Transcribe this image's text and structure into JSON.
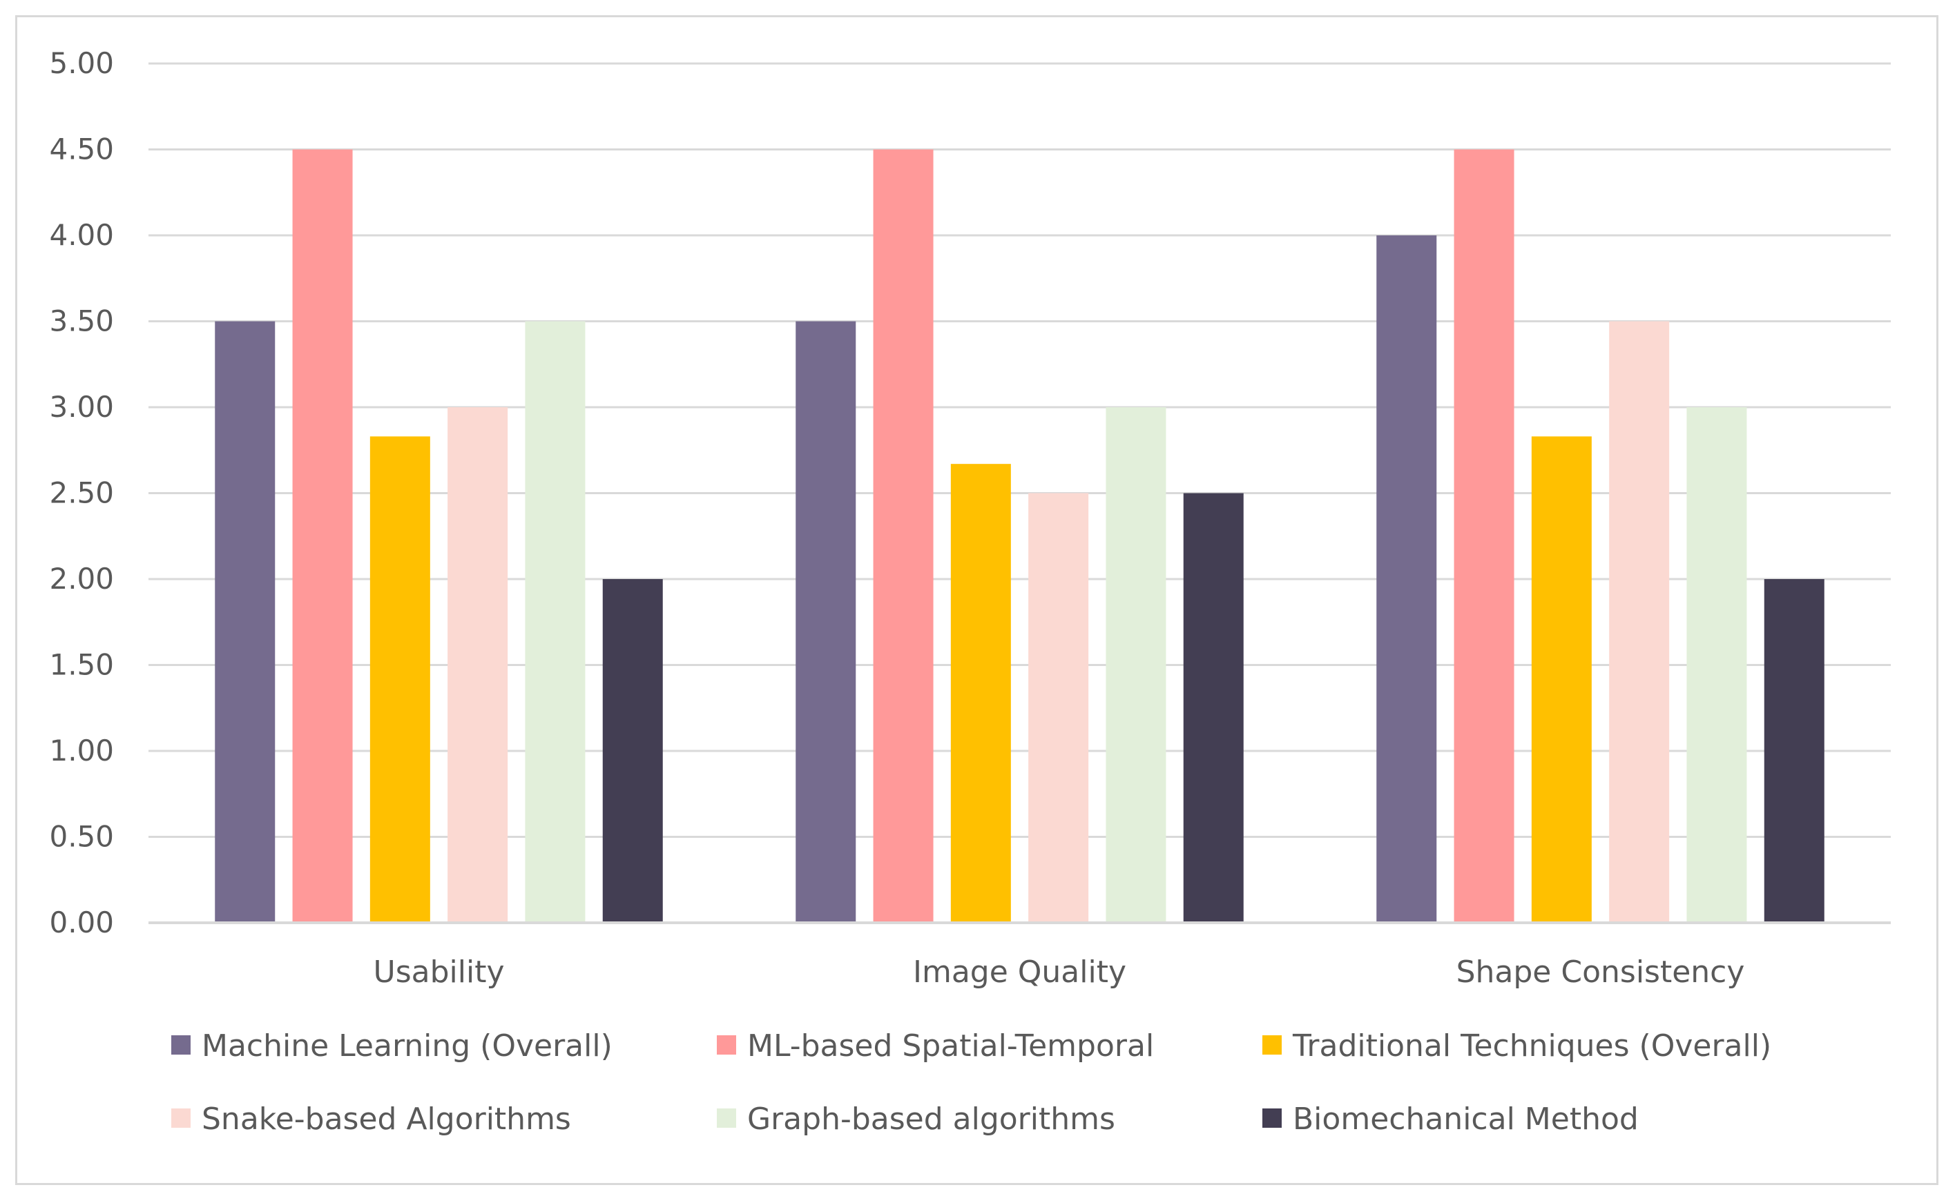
{
  "chart_data": {
    "type": "bar",
    "title": "",
    "xlabel": "",
    "ylabel": "",
    "ylim": [
      0,
      5
    ],
    "y_ticks": [
      "0.00",
      "0.50",
      "1.00",
      "1.50",
      "2.00",
      "2.50",
      "3.00",
      "3.50",
      "4.00",
      "4.50",
      "5.00"
    ],
    "grid": true,
    "legend_position": "bottom",
    "categories": [
      "Usability",
      "Image Quality",
      "Shape Consistency"
    ],
    "series": [
      {
        "name": "Machine Learning (Overall)",
        "color": "#756b8e",
        "values": [
          3.5,
          3.5,
          4.0
        ]
      },
      {
        "name": "ML-based Spatial-Temporal",
        "color": "#ff9999",
        "values": [
          4.5,
          4.5,
          4.5
        ]
      },
      {
        "name": "Traditional Techniques (Overall)",
        "color": "#ffc000",
        "values": [
          2.83,
          2.67,
          2.83
        ]
      },
      {
        "name": "Snake-based Algorithms",
        "color": "#fbd9d2",
        "values": [
          3.0,
          2.5,
          3.5
        ]
      },
      {
        "name": "Graph-based algorithms",
        "color": "#e2efda",
        "values": [
          3.5,
          3.0,
          3.0
        ]
      },
      {
        "name": "Biomechanical Method",
        "color": "#433e53",
        "values": [
          2.0,
          2.5,
          2.0
        ]
      }
    ]
  }
}
